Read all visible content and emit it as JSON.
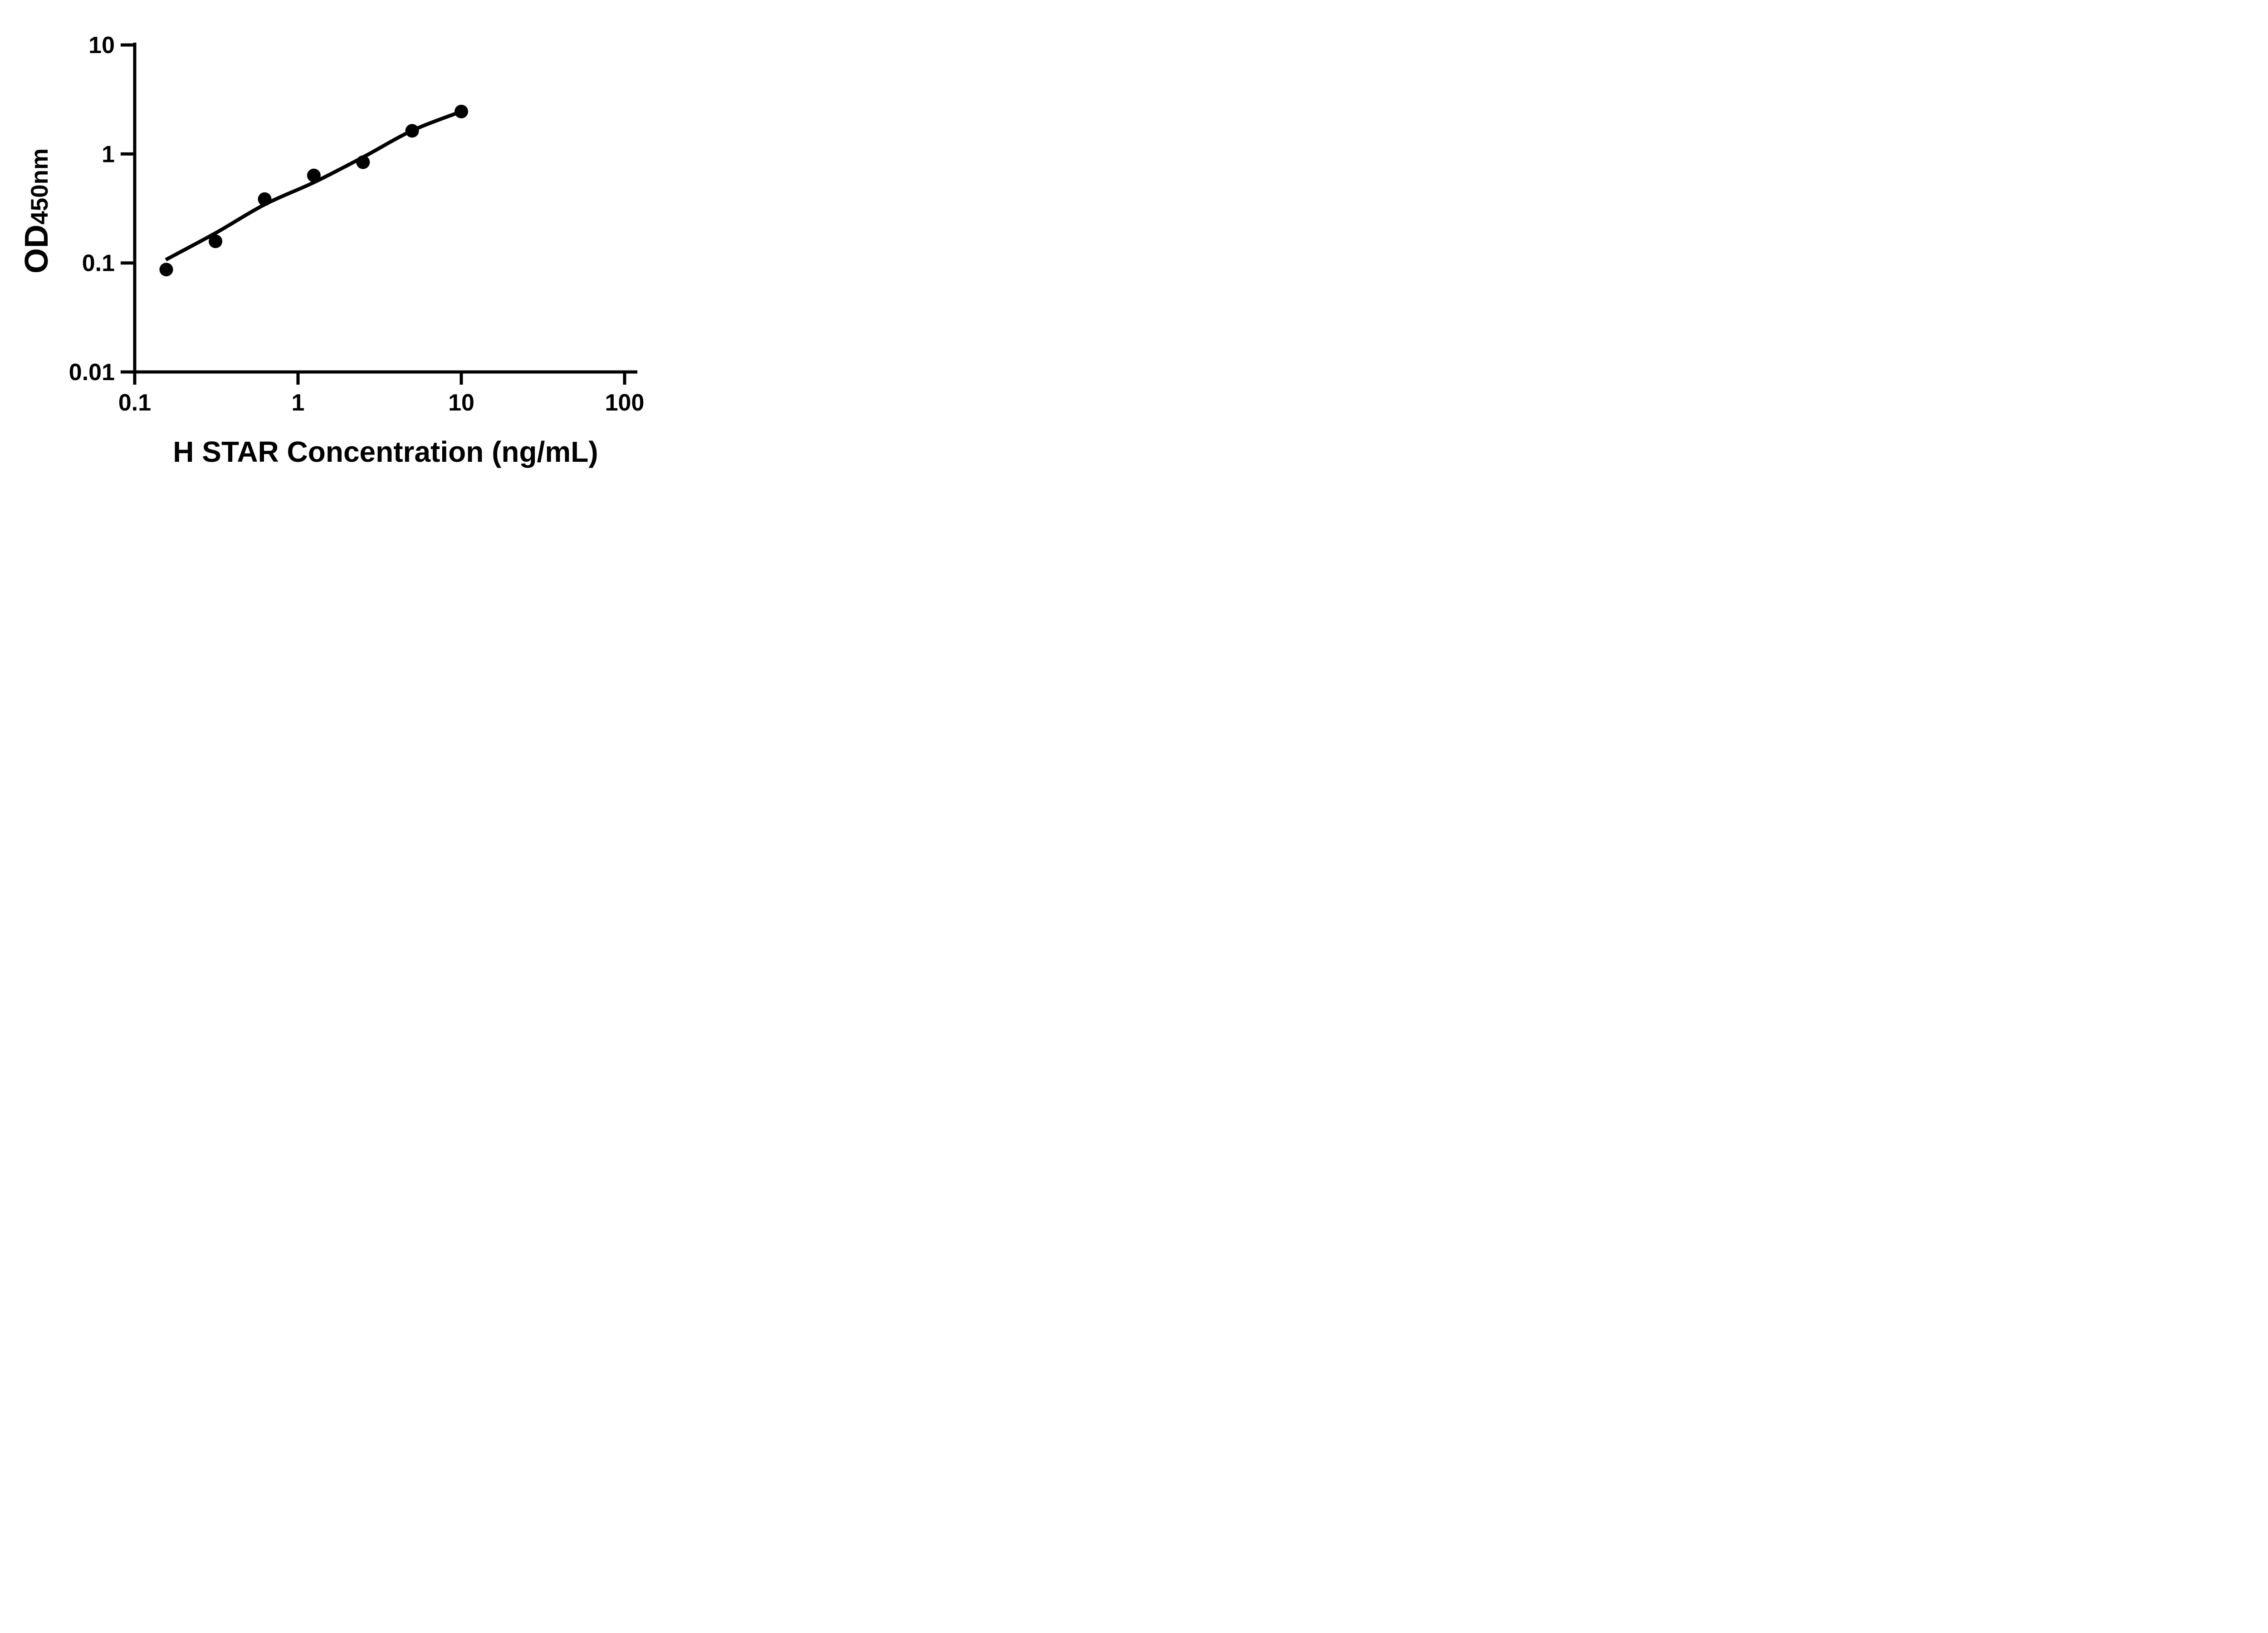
{
  "figure": {
    "background_color": "#ffffff",
    "ink_color": "#000000"
  },
  "chart_data": {
    "type": "scatter",
    "title": "",
    "xlabel": "H STAR Concentration (ng/mL)",
    "ylabel_main": "OD",
    "ylabel_sub": "450nm",
    "x_scale": "log",
    "y_scale": "log",
    "xlim": [
      0.1,
      100
    ],
    "ylim": [
      0.01,
      10
    ],
    "grid": false,
    "legend": "none",
    "marker": {
      "shape": "circle",
      "color": "#000000"
    },
    "fit_line_color": "#000000",
    "x_ticks": [
      {
        "value": 0.1,
        "label": "0.1"
      },
      {
        "value": 1,
        "label": "1"
      },
      {
        "value": 10,
        "label": "10"
      },
      {
        "value": 100,
        "label": "100"
      }
    ],
    "y_ticks": [
      {
        "value": 10,
        "label": "10"
      },
      {
        "value": 1,
        "label": "1"
      },
      {
        "value": 0.1,
        "label": "0.1"
      },
      {
        "value": 0.01,
        "label": "0.01"
      }
    ],
    "points": [
      {
        "x": 0.156,
        "y": 0.087
      },
      {
        "x": 0.3125,
        "y": 0.158
      },
      {
        "x": 0.625,
        "y": 0.385
      },
      {
        "x": 1.25,
        "y": 0.635
      },
      {
        "x": 2.5,
        "y": 0.84
      },
      {
        "x": 5,
        "y": 1.63
      },
      {
        "x": 10,
        "y": 2.45
      }
    ],
    "fit_curve": [
      {
        "x": 0.155,
        "y": 0.107
      },
      {
        "x": 0.3125,
        "y": 0.188
      },
      {
        "x": 0.625,
        "y": 0.344
      },
      {
        "x": 1.25,
        "y": 0.548
      },
      {
        "x": 2.5,
        "y": 0.933
      },
      {
        "x": 5,
        "y": 1.64
      },
      {
        "x": 10,
        "y": 2.45
      }
    ]
  }
}
